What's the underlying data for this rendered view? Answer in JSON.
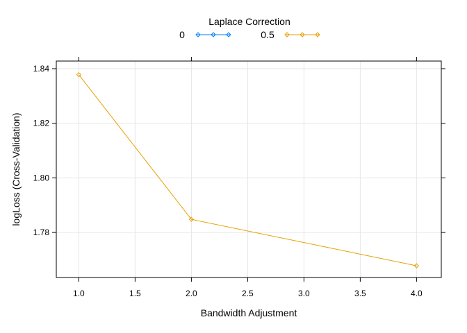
{
  "chart_data": {
    "type": "line",
    "title": "",
    "xlabel": "Bandwidth Adjustment",
    "ylabel": "logLoss (Cross-Validation)",
    "xlim": [
      0.8,
      4.22
    ],
    "ylim": [
      1.7635,
      1.8428
    ],
    "x_ticks": [
      1.0,
      1.5,
      2.0,
      2.5,
      3.0,
      3.5,
      4.0
    ],
    "x_tick_labels": [
      "1.0",
      "1.5",
      "2.0",
      "2.5",
      "3.0",
      "3.5",
      "4.0"
    ],
    "y_ticks": [
      1.78,
      1.8,
      1.82,
      1.84
    ],
    "y_tick_labels": [
      "1.78",
      "1.80",
      "1.82",
      "1.84"
    ],
    "grid": true,
    "legend": {
      "title": "Laplace Correction",
      "placement": "top"
    },
    "series": [
      {
        "name": "0",
        "color": "#0080ff",
        "marker": "diamond",
        "x": [],
        "y": []
      },
      {
        "name": "0.5",
        "color": "#e6a000",
        "marker": "diamond",
        "x": [
          1.0,
          2.0,
          4.0
        ],
        "y": [
          1.8378,
          1.7848,
          1.7678
        ]
      }
    ]
  }
}
